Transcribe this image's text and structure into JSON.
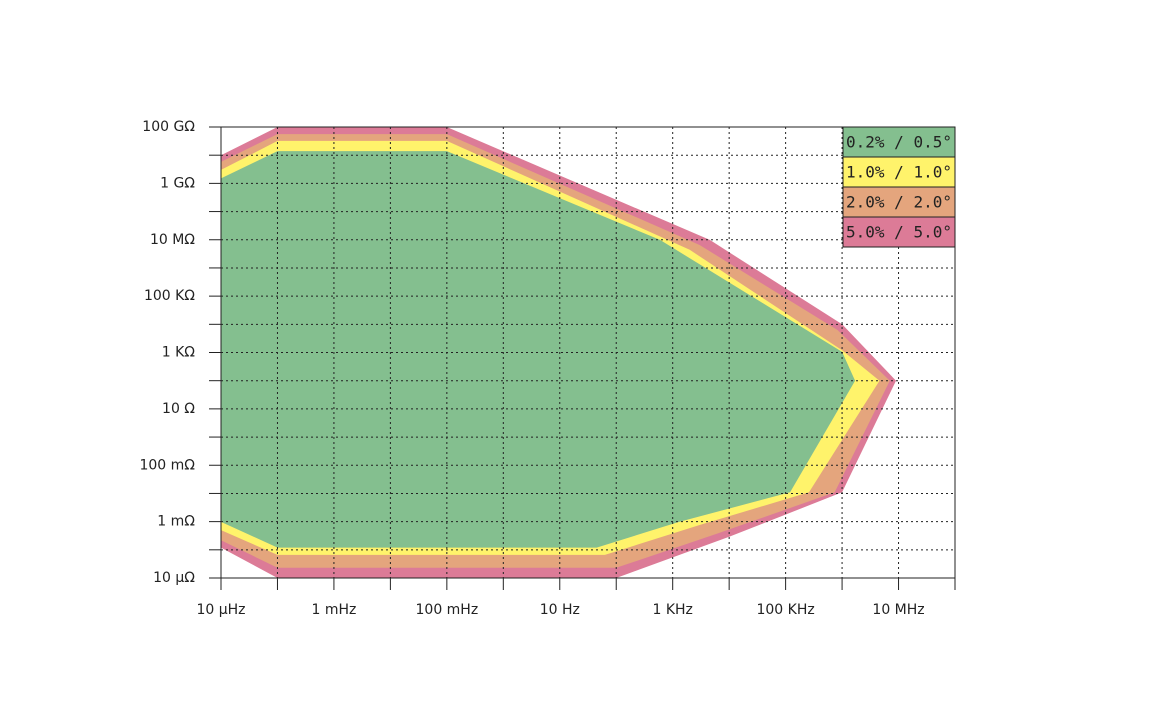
{
  "chart_data": {
    "type": "area-region",
    "xscale": "log",
    "yscale": "log",
    "grid": true,
    "legend": "top-right",
    "xlim": [
      1e-05,
      100000000.0
    ],
    "ylim": [
      1e-05,
      100000000000.0
    ],
    "xticks": [
      {
        "value": 1e-05,
        "label": "10 µHz"
      },
      {
        "value": 0.001,
        "label": "1 mHz"
      },
      {
        "value": 0.1,
        "label": "100 mHz"
      },
      {
        "value": 10,
        "label": "10 Hz"
      },
      {
        "value": 1000,
        "label": "1 KHz"
      },
      {
        "value": 100000.0,
        "label": "100 KHz"
      },
      {
        "value": 10000000.0,
        "label": "10 MHz"
      }
    ],
    "xminor_ticks": [
      0.0001,
      0.01,
      1,
      100,
      10000.0,
      1000000.0,
      100000000.0
    ],
    "yticks": [
      {
        "value": 100000000000.0,
        "label": "100 GΩ"
      },
      {
        "value": 1000000000.0,
        "label": "1 GΩ"
      },
      {
        "value": 10000000.0,
        "label": "10 MΩ"
      },
      {
        "value": 100000.0,
        "label": "100 KΩ"
      },
      {
        "value": 1000.0,
        "label": "1 KΩ"
      },
      {
        "value": 10,
        "label": "10 Ω"
      },
      {
        "value": 0.1,
        "label": "100 mΩ"
      },
      {
        "value": 0.001,
        "label": "1 mΩ"
      },
      {
        "value": 1e-05,
        "label": "10 µΩ"
      }
    ],
    "yminor_ticks": [
      10000000000.0,
      100000000.0,
      1000000.0,
      10000.0,
      100,
      1,
      0.01,
      0.0001
    ],
    "series": [
      {
        "name": "0.2% / 0.5°",
        "color": "#84bf8f",
        "x": [
          1e-05,
          0.0001,
          0.1,
          590,
          1000000.0,
          1700000.0,
          120000.0,
          1300,
          45,
          0.0001,
          1e-05
        ],
        "values": [
          1500000000.0,
          14000000000.0,
          14000000000.0,
          10000000.0,
          1050,
          100,
          0.011,
          0.00098,
          0.00012,
          0.00012,
          0.00098
        ]
      },
      {
        "name": "1.0% / 1.0°",
        "color": "#fff36b",
        "x": [
          1e-05,
          0.0001,
          0.1,
          2000,
          1000000.0,
          4600000.0,
          260000.0,
          3000,
          63,
          0.0001,
          1e-05
        ],
        "values": [
          3000000000.0,
          32000000000.0,
          32000000000.0,
          4400000.0,
          1200,
          100,
          0.011,
          0.00076,
          6.6e-05,
          6.6e-05,
          0.0005
        ]
      },
      {
        "name": "2.0% / 2.0°",
        "color": "#e4a57d",
        "x": [
          1e-05,
          0.0001,
          0.1,
          3000,
          830000.0,
          7000000.0,
          740000.0,
          6800,
          100,
          0.0001,
          1e-05
        ],
        "values": [
          5800000000.0,
          56000000000.0,
          56000000000.0,
          6500000.0,
          6300,
          100,
          0.011,
          0.0004,
          2.3e-05,
          2.3e-05,
          0.00022
        ]
      },
      {
        "name": "5.0% / 5.0°",
        "color": "#dc7b97",
        "x": [
          1e-05,
          0.0001,
          0.1,
          4500,
          1000000.0,
          9000000.0,
          1000000.0,
          10000.0,
          100,
          0.0001,
          1e-05
        ],
        "values": [
          10000000000.0,
          100000000000.0,
          100000000000.0,
          10000000.0,
          10000.0,
          100,
          0.011,
          0.00029,
          1e-05,
          1e-05,
          0.00012
        ]
      }
    ]
  }
}
